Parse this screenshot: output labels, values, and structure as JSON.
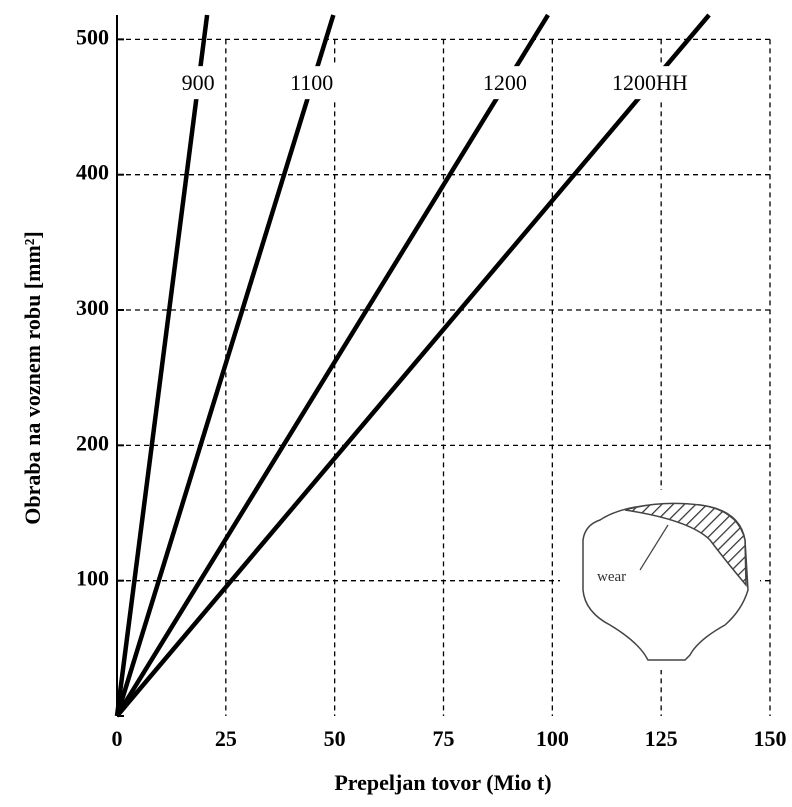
{
  "chart_data": {
    "type": "line",
    "xlabel": "Prepeljan tovor (Mio t)",
    "ylabel": "Obraba na voznem robu [mm²]",
    "xlim": [
      0,
      150
    ],
    "ylim": [
      0,
      518
    ],
    "xticks": [
      0,
      25,
      50,
      75,
      100,
      125,
      150
    ],
    "yticks": [
      0,
      100,
      200,
      300,
      400,
      500
    ],
    "grid": true,
    "series": [
      {
        "name": "900",
        "color": "#000000",
        "x": [
          0,
          20.7
        ],
        "values": [
          0,
          518
        ]
      },
      {
        "name": "1100",
        "color": "#000000",
        "x": [
          0,
          49.7
        ],
        "values": [
          0,
          518
        ]
      },
      {
        "name": "1200",
        "color": "#000000",
        "x": [
          0,
          99
        ],
        "values": [
          0,
          518
        ]
      },
      {
        "name": "1200HH",
        "color": "#000000",
        "x": [
          0,
          136
        ],
        "values": [
          0,
          518
        ]
      }
    ],
    "inset_label": "wear"
  }
}
